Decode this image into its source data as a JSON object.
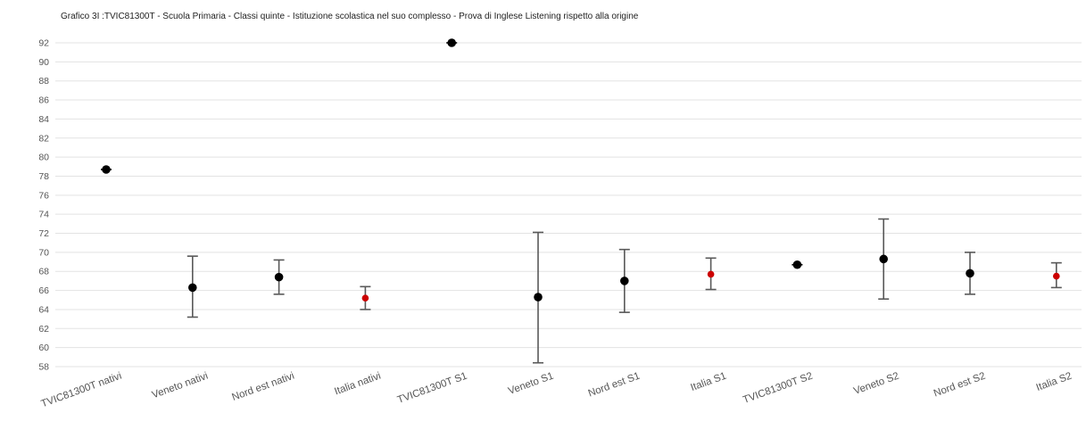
{
  "chart_data": {
    "type": "scatter",
    "subtype": "point-with-error-bars",
    "title": "Grafico 3I :TVIC81300T - Scuola Primaria - Classi quinte - Istituzione scolastica nel suo complesso - Prova di Inglese Listening rispetto alla  origine",
    "xlabel": "",
    "ylabel": "",
    "ylim": [
      58,
      92
    ],
    "yticks": [
      58,
      60,
      62,
      64,
      66,
      68,
      70,
      72,
      74,
      76,
      78,
      80,
      82,
      84,
      86,
      88,
      90,
      92
    ],
    "grid": true,
    "legend": "none",
    "colors": {
      "school": "#000000",
      "region": "#000000",
      "italia": "#cc0000",
      "errorbar": "#595959",
      "grid": "#e3e3e3"
    },
    "categories": [
      "TVIC81300T nativi",
      "Veneto nativi",
      "Nord est nativi",
      "Italia nativi",
      "TVIC81300T S1",
      "Veneto S1",
      "Nord est S1",
      "Italia S1",
      "TVIC81300T S2",
      "Veneto S2",
      "Nord est S2",
      "Italia S2"
    ],
    "points": [
      {
        "value": 78.7,
        "low": 78.7,
        "high": 78.7,
        "kind": "school"
      },
      {
        "value": 66.3,
        "low": 63.2,
        "high": 69.6,
        "kind": "region"
      },
      {
        "value": 67.4,
        "low": 65.6,
        "high": 69.2,
        "kind": "region"
      },
      {
        "value": 65.2,
        "low": 64.0,
        "high": 66.4,
        "kind": "italia"
      },
      {
        "value": 92.0,
        "low": 92.0,
        "high": 92.0,
        "kind": "school"
      },
      {
        "value": 65.3,
        "low": 58.4,
        "high": 72.1,
        "kind": "region"
      },
      {
        "value": 67.0,
        "low": 63.7,
        "high": 70.3,
        "kind": "region"
      },
      {
        "value": 67.7,
        "low": 66.1,
        "high": 69.4,
        "kind": "italia"
      },
      {
        "value": 68.7,
        "low": 68.7,
        "high": 68.7,
        "kind": "school"
      },
      {
        "value": 69.3,
        "low": 65.1,
        "high": 73.5,
        "kind": "region"
      },
      {
        "value": 67.8,
        "low": 65.6,
        "high": 70.0,
        "kind": "region"
      },
      {
        "value": 67.5,
        "low": 66.3,
        "high": 68.9,
        "kind": "italia"
      }
    ]
  }
}
